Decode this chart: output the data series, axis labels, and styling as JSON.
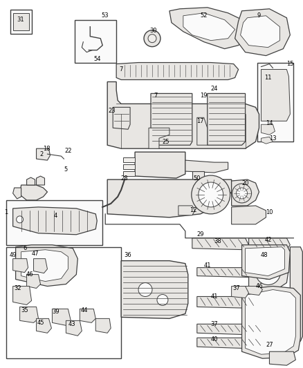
{
  "background_color": "#ffffff",
  "text_color": "#000000",
  "line_color": "#404040",
  "fig_width": 4.39,
  "fig_height": 5.33,
  "dpi": 100,
  "label_fontsize": 6.0
}
